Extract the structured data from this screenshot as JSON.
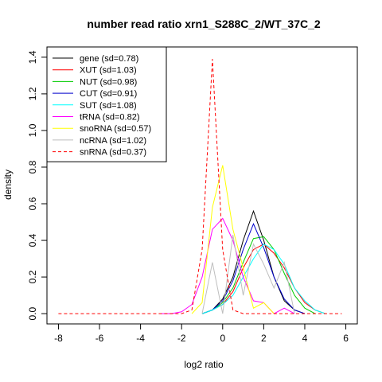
{
  "chart_data": {
    "type": "line",
    "title": "number read ratio xrn1_S288C_2/WT_37C_2",
    "xlabel": "log2 ratio",
    "ylabel": "density",
    "xlim": [
      -8.56,
      6.56
    ],
    "ylim": [
      -0.056,
      1.456
    ],
    "x_ticks": [
      -8,
      -6,
      -4,
      -2,
      0,
      2,
      4,
      6
    ],
    "y_ticks": [
      0.0,
      0.2,
      0.4,
      0.6,
      0.8,
      1.0,
      1.2,
      1.4
    ],
    "x_tick_labels": [
      "-8",
      "-6",
      "-4",
      "-2",
      "0",
      "2",
      "4",
      "6"
    ],
    "y_tick_labels": [
      "0.0",
      "0.2",
      "0.4",
      "0.6",
      "0.8",
      "1.0",
      "1.2",
      "1.4"
    ],
    "grid": false,
    "legend_position": "top-left",
    "series": [
      {
        "name": "gene (sd=0.78)",
        "color": "#000000",
        "dash": "solid",
        "x": [
          -1.0,
          -0.5,
          0.0,
          0.5,
          1.0,
          1.5,
          2.0,
          2.5,
          3.0,
          3.5,
          4.0
        ],
        "y": [
          0.0,
          0.02,
          0.08,
          0.2,
          0.4,
          0.56,
          0.4,
          0.2,
          0.07,
          0.02,
          0.0
        ]
      },
      {
        "name": "XUT (sd=1.03)",
        "color": "#ff0000",
        "dash": "solid",
        "x": [
          -1.0,
          -0.5,
          0.0,
          0.5,
          1.0,
          1.5,
          2.0,
          2.5,
          3.0,
          3.5,
          4.0,
          4.5,
          5.0
        ],
        "y": [
          0.0,
          0.02,
          0.05,
          0.12,
          0.25,
          0.35,
          0.38,
          0.33,
          0.25,
          0.14,
          0.06,
          0.02,
          0.0
        ]
      },
      {
        "name": "NUT (sd=0.98)",
        "color": "#00cc00",
        "dash": "solid",
        "x": [
          -1.0,
          -0.5,
          0.0,
          0.5,
          1.0,
          1.5,
          2.0,
          2.5,
          3.0,
          3.5,
          4.0,
          4.5
        ],
        "y": [
          0.0,
          0.02,
          0.06,
          0.14,
          0.28,
          0.41,
          0.42,
          0.35,
          0.22,
          0.1,
          0.03,
          0.0
        ]
      },
      {
        "name": "CUT (sd=0.91)",
        "color": "#0000cc",
        "dash": "solid",
        "x": [
          -1.0,
          -0.5,
          0.0,
          0.5,
          1.0,
          1.5,
          2.0,
          2.5,
          3.0,
          3.5,
          4.0
        ],
        "y": [
          0.0,
          0.02,
          0.07,
          0.18,
          0.35,
          0.49,
          0.36,
          0.2,
          0.08,
          0.02,
          0.0
        ]
      },
      {
        "name": "SUT (sd=1.08)",
        "color": "#00ffff",
        "dash": "solid",
        "x": [
          -1.0,
          -0.5,
          0.0,
          0.5,
          1.0,
          1.5,
          2.0,
          2.5,
          3.0,
          3.5,
          4.0,
          4.5,
          5.0
        ],
        "y": [
          0.0,
          0.02,
          0.05,
          0.1,
          0.2,
          0.3,
          0.38,
          0.35,
          0.27,
          0.14,
          0.07,
          0.02,
          0.0
        ]
      },
      {
        "name": "tRNA (sd=0.82)",
        "color": "#ff00ff",
        "dash": "solid",
        "x": [
          -3.0,
          -2.5,
          -2.0,
          -1.5,
          -1.0,
          -0.5,
          0.0,
          0.5,
          1.0,
          1.5,
          2.0,
          2.5,
          3.0,
          3.5
        ],
        "y": [
          0.0,
          0.0,
          0.01,
          0.05,
          0.2,
          0.46,
          0.52,
          0.4,
          0.2,
          0.07,
          0.06,
          0.0,
          0.03,
          0.0
        ]
      },
      {
        "name": "snoRNA (sd=0.57)",
        "color": "#ffff00",
        "dash": "solid",
        "x": [
          -1.5,
          -1.0,
          -0.5,
          0.0,
          0.5,
          1.0,
          1.5,
          2.0,
          2.5
        ],
        "y": [
          0.0,
          0.06,
          0.58,
          0.81,
          0.46,
          0.25,
          0.03,
          0.06,
          0.0
        ]
      },
      {
        "name": "ncRNA (sd=1.02)",
        "color": "#bebebe",
        "dash": "solid",
        "x": [
          -1.0,
          -0.5,
          0.0,
          0.5,
          1.0,
          1.5,
          2.0,
          2.5,
          3.0,
          3.5
        ],
        "y": [
          0.0,
          0.28,
          0.0,
          0.43,
          0.1,
          0.38,
          0.27,
          0.14,
          0.28,
          0.0
        ]
      },
      {
        "name": "snRNA (sd=0.37)",
        "color": "#ff0000",
        "dash": "dashed",
        "x": [
          -8.0,
          -2.0,
          -1.5,
          -1.0,
          -0.5,
          0.0,
          0.5,
          1.0,
          5.8
        ],
        "y": [
          0.0,
          0.0,
          0.02,
          0.35,
          1.39,
          0.35,
          0.02,
          0.0,
          0.0
        ]
      }
    ]
  }
}
